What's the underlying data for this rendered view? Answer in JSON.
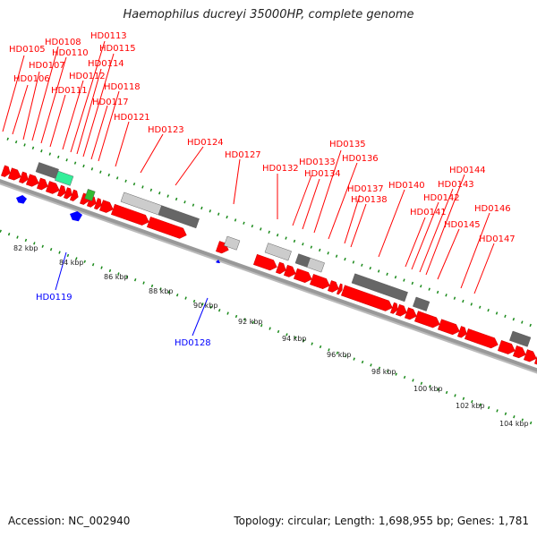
{
  "title": "Haemophilus ducreyi 35000HP, complete genome",
  "footer": {
    "accession": "Accession: NC_002940",
    "summary": "Topology: circular; Length: 1,698,955 bp; Genes: 1,781"
  },
  "colors": {
    "forward_gene": "#ff0000",
    "reverse_gene": "#0000ff",
    "ticks": "#1a8a1a",
    "feature_dark": "#666666",
    "feature_light": "#cccccc",
    "feature_teal": "#33ee99",
    "feature_green": "#33bb33"
  },
  "forward_labels": [
    "HD0105",
    "HD0106",
    "HD0107",
    "HD0108",
    "HD0110",
    "HD0111",
    "HD0112",
    "HD0113",
    "HD0114",
    "HD0115",
    "HD0117",
    "HD0118",
    "HD0121",
    "HD0123",
    "HD0124",
    "HD0127",
    "HD0132",
    "HD0133",
    "HD0134",
    "HD0135",
    "HD0136",
    "HD0137",
    "HD0138",
    "HD0140",
    "HD0141",
    "HD0142",
    "HD0143",
    "HD0144",
    "HD0145",
    "HD0146",
    "HD0147"
  ],
  "reverse_labels": [
    "HD0119",
    "HD0128"
  ],
  "scale_labels": [
    "82 kbp",
    "84 kbp",
    "86 kbp",
    "88 kbp",
    "90 kbp",
    "92 kbp",
    "94 kbp",
    "96 kbp",
    "98 kbp",
    "100 kbp",
    "102 kbp",
    "104 kbp"
  ]
}
